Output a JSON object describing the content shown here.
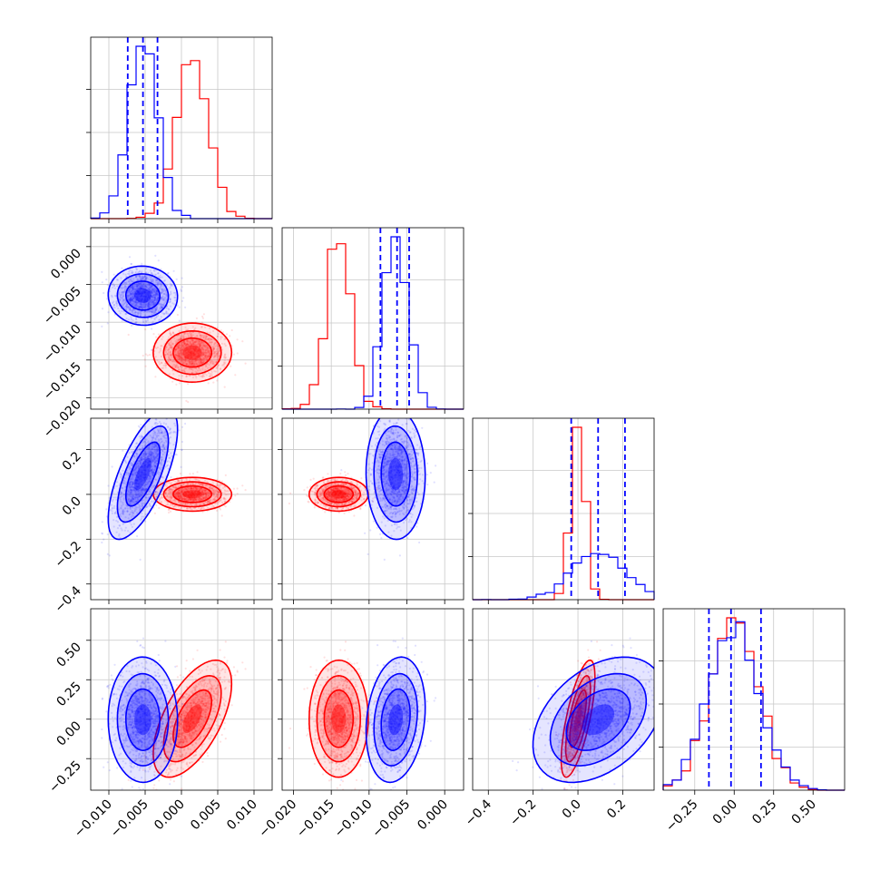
{
  "figure": {
    "title": "",
    "colors": {
      "series_a": "#ff0000",
      "series_b": "#0000ff",
      "grid": "#c8c8c8"
    }
  },
  "chart_data": {
    "type": "scatter",
    "subtype": "corner-plot",
    "series": [
      {
        "color": "#ff0000",
        "means": [
          0.0015,
          -0.014,
          0.0,
          0.0
        ],
        "sds": [
          0.0022,
          0.0016,
          0.03,
          0.15
        ],
        "corr_01": 0.0,
        "corr_03": 0.6,
        "corr_23": 0.7
      },
      {
        "color": "#0000ff",
        "means": [
          -0.0053,
          -0.0065,
          0.09,
          0.0
        ],
        "sds": [
          0.002,
          0.0016,
          0.12,
          0.16
        ],
        "corr_02": 0.7,
        "corr_13": 0.2,
        "corr_23": 0.4
      }
    ],
    "quantile_lines_series_b": [
      [
        -0.0074,
        -0.0053,
        -0.0033
      ],
      [
        -0.0085,
        -0.0063,
        -0.0047
      ],
      [
        -0.03,
        0.09,
        0.21
      ],
      [
        -0.16,
        -0.02,
        0.17
      ]
    ],
    "axes": [
      {
        "range": [
          -0.0125,
          0.0125
        ],
        "ticks": [
          -0.01,
          -0.005,
          0.0,
          0.005,
          0.01
        ],
        "tick_labels": [
          "−0.010",
          "−0.005",
          "0.000",
          "0.005",
          "0.010"
        ]
      },
      {
        "range": [
          -0.0215,
          0.0025
        ],
        "ticks": [
          -0.02,
          -0.015,
          -0.01,
          -0.005,
          0.0
        ],
        "tick_labels": [
          "−0.020",
          "−0.015",
          "−0.010",
          "−0.005",
          "0.000"
        ]
      },
      {
        "range": [
          -0.47,
          0.34
        ],
        "ticks": [
          -0.4,
          -0.2,
          0.0,
          0.2
        ],
        "tick_labels": [
          "−0.4",
          "−0.2",
          "0.0",
          "0.2"
        ]
      },
      {
        "range": [
          -0.45,
          0.7
        ],
        "ticks": [
          -0.25,
          0.0,
          0.25,
          0.5
        ],
        "tick_labels": [
          "−0.25",
          "0.00",
          "0.25",
          "0.50"
        ]
      }
    ],
    "grid": true,
    "xlabel": "",
    "ylabel": ""
  }
}
